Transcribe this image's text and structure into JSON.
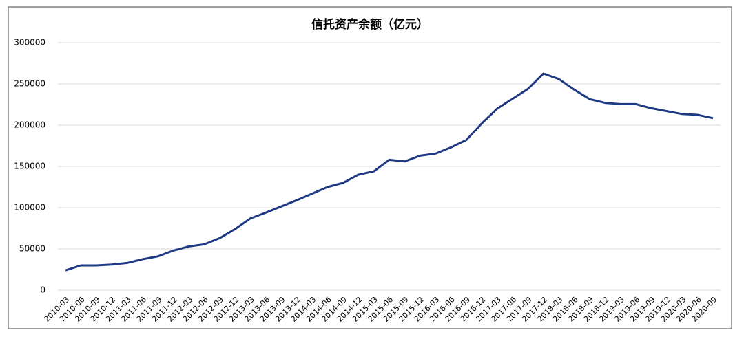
{
  "chart_data": {
    "type": "line",
    "title": "信托资产余额（亿元）",
    "categories": [
      "2010-03",
      "2010-06",
      "2010-09",
      "2010-12",
      "2011-03",
      "2011-06",
      "2011-09",
      "2011-12",
      "2012-03",
      "2012-06",
      "2012-09",
      "2012-12",
      "2013-03",
      "2013-06",
      "2013-09",
      "2013-12",
      "2014-03",
      "2014-06",
      "2014-09",
      "2014-12",
      "2015-03",
      "2015-06",
      "2015-09",
      "2015-12",
      "2016-03",
      "2016-06",
      "2016-09",
      "2016-12",
      "2017-03",
      "2017-06",
      "2017-09",
      "2017-12",
      "2018-03",
      "2018-06",
      "2018-09",
      "2018-12",
      "2019-03",
      "2019-06",
      "2019-09",
      "2019-12",
      "2020-03",
      "2020-06",
      "2020-09"
    ],
    "values": [
      24000,
      30000,
      30000,
      31000,
      33000,
      37500,
      41000,
      48000,
      53000,
      55500,
      63000,
      74000,
      87000,
      94000,
      101500,
      109000,
      117000,
      125000,
      130000,
      140000,
      144000,
      158000,
      156000,
      163000,
      165500,
      173000,
      182000,
      202000,
      220000,
      232000,
      244000,
      262500,
      256000,
      243000,
      231500,
      227000,
      225500,
      225500,
      220500,
      217000,
      213500,
      212500,
      208500
    ],
    "color": "#1f3a85",
    "ylim": [
      0,
      300000
    ],
    "yticks": [
      0,
      50000,
      100000,
      150000,
      200000,
      250000,
      300000
    ],
    "grid": true
  }
}
